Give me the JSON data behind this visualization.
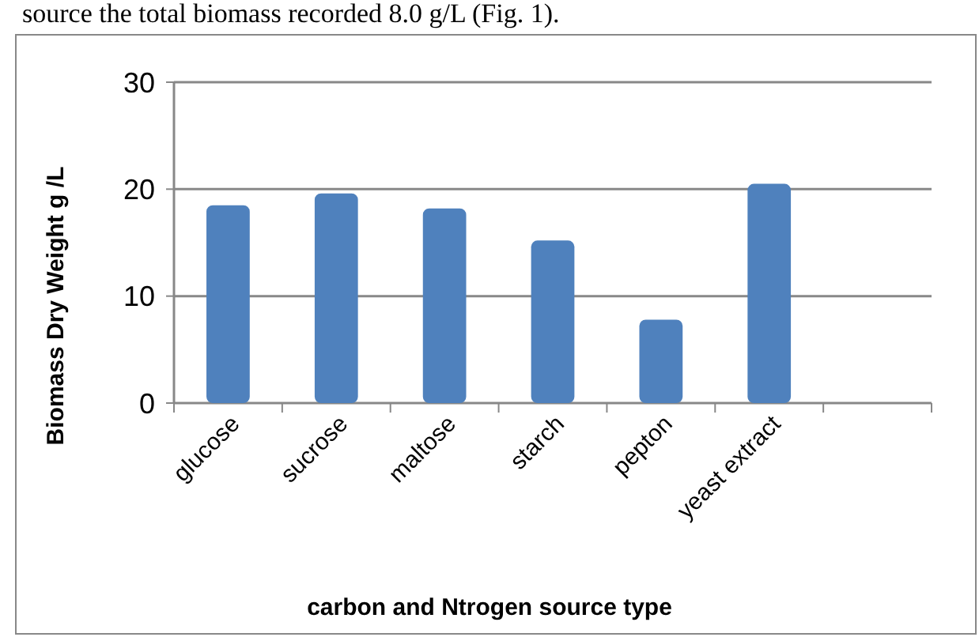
{
  "chart_data": {
    "type": "bar",
    "xlabel": "carbon and Ntrogen source type",
    "ylabel": "Biomass Dry Weight g /L",
    "categories": [
      "glucose",
      "sucrose",
      "maltose",
      "starch",
      "pepton",
      "yeast extract",
      null
    ],
    "values": [
      18.5,
      19.6,
      18.2,
      15.2,
      7.8,
      20.5,
      null
    ],
    "color": "#4f81bd",
    "ylim": [
      0,
      30
    ],
    "yticks": [
      0,
      10,
      20,
      30
    ],
    "grid": "y",
    "annotations": [
      "source the total biomass recorded 8.0 g/L (Fig. 1)."
    ]
  }
}
